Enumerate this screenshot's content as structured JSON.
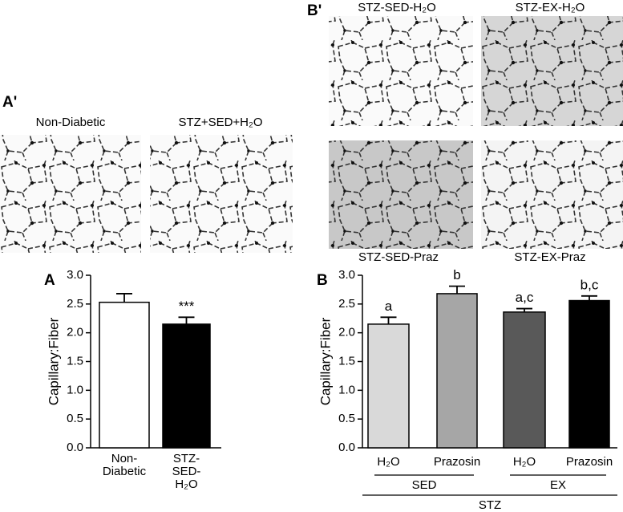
{
  "panels": {
    "a_prime": "A'",
    "b_prime": "B'",
    "a": "A",
    "b": "B"
  },
  "images_a": [
    "Non-Diabetic",
    "STZ+SED+H₂O"
  ],
  "images_b": [
    "STZ-SED-H₂O",
    "STZ-EX-H₂O",
    "STZ-SED-Praz",
    "STZ-EX-Praz"
  ],
  "chart_data": [
    {
      "type": "bar",
      "y_label": "Capillary:Fiber",
      "categories": [
        [
          "Non-",
          "Diabetic"
        ],
        [
          "STZ-",
          "SED-",
          "H₂O"
        ]
      ],
      "values": [
        2.53,
        2.15
      ],
      "errors": [
        0.15,
        0.12
      ],
      "colors": [
        "#ffffff",
        "#000000"
      ],
      "annotations": [
        null,
        "***"
      ],
      "ylim": [
        0,
        3
      ],
      "yticks": [
        {
          "value": 0,
          "label": "0.0"
        },
        0.5,
        {
          "value": 1,
          "label": "1.0"
        },
        1.5,
        {
          "value": 2,
          "label": "2.0"
        },
        2.5,
        {
          "value": 3,
          "label": "3.0"
        }
      ]
    },
    {
      "type": "bar",
      "y_label": "Capillary:Fiber",
      "categories": [
        "H₂O",
        "Prazosin",
        "H₂O",
        "Prazosin"
      ],
      "values": [
        2.15,
        2.68,
        2.36,
        2.56
      ],
      "errors": [
        0.12,
        0.13,
        0.06,
        0.08
      ],
      "colors": [
        "#d9d9d9",
        "#a6a6a6",
        "#595959",
        "#000000"
      ],
      "annotations": [
        "a",
        "b",
        "a,c",
        "b,c"
      ],
      "groups": [
        {
          "label": "SED",
          "from": 0,
          "to": 1
        },
        {
          "label": "EX",
          "from": 2,
          "to": 3
        },
        {
          "label": "STZ",
          "from": 0,
          "to": 3
        }
      ],
      "ylim": [
        0,
        3
      ],
      "yticks": [
        {
          "value": 0,
          "label": "0.0"
        },
        0.5,
        {
          "value": 1,
          "label": "1.0"
        },
        1.5,
        {
          "value": 2,
          "label": "2.0"
        },
        2.5,
        {
          "value": 3,
          "label": "3.0"
        }
      ]
    }
  ]
}
